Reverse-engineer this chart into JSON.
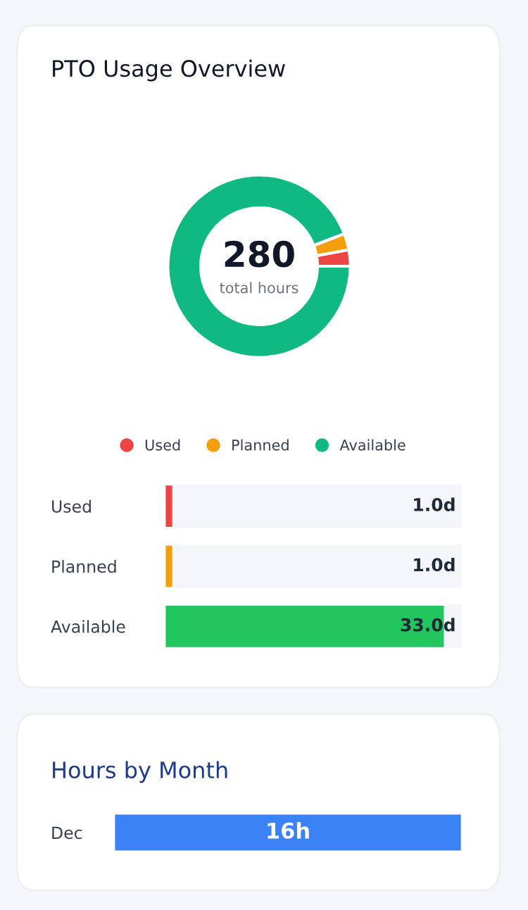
{
  "chart_data": [
    {
      "type": "donut",
      "title": "PTO Usage Overview",
      "categories": [
        "Used",
        "Planned",
        "Available"
      ],
      "values": [
        2.9,
        2.9,
        94.2
      ],
      "colors": [
        "#ef4444",
        "#f59e0b",
        "#10b981"
      ],
      "annotations": [
        "280",
        "total hours"
      ],
      "legend": "bottom"
    },
    {
      "type": "bar",
      "orientation": "horizontal",
      "categories": [
        "Used",
        "Planned",
        "Available"
      ],
      "values": [
        1.0,
        1.0,
        33.0
      ],
      "colors": [
        "#ef4444",
        "#f59e0b",
        "#22c55e"
      ],
      "value_labels": [
        "1.0d",
        "1.0d",
        "33.0d"
      ]
    },
    {
      "type": "bar",
      "orientation": "horizontal",
      "title": "Hours by Month",
      "categories": [
        "Dec"
      ],
      "values": [
        16
      ],
      "colors": [
        "#3b82f6"
      ],
      "value_labels": [
        "16h"
      ]
    }
  ]
}
